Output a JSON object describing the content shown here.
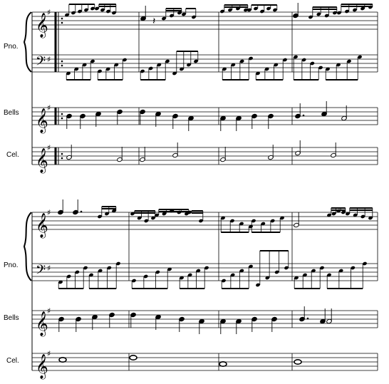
{
  "labels": {
    "piano": "Pno.",
    "bells": "Bells",
    "celesta": "Cel."
  },
  "key_signature": "G major (1 sharp)",
  "symbols": {
    "treble_clef": "𝄞",
    "bass_clef": "𝄢",
    "sharp": "♯",
    "quarter_rest": "𝄽"
  },
  "colors": {
    "ink": "#000000",
    "paper": "#ffffff"
  }
}
